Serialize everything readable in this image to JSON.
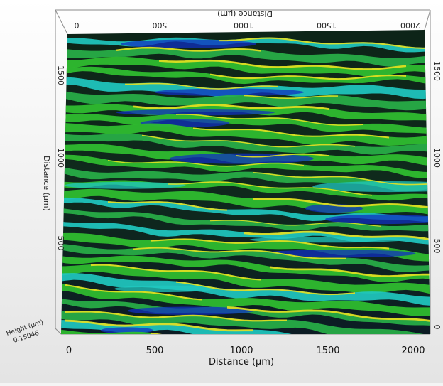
{
  "figure": {
    "top_axis": {
      "label": "Distance (μm)",
      "ticks": [
        "0",
        "500",
        "1000",
        "1500",
        "2000"
      ]
    },
    "bottom_axis": {
      "label": "Distance (μm)",
      "ticks": [
        "0",
        "500",
        "1000",
        "1500",
        "2000"
      ]
    },
    "left_axis": {
      "label": "Distance (μm)",
      "ticks": [
        "1500",
        "1000",
        "500"
      ]
    },
    "right_axis": {
      "ticks": [
        "1500",
        "1000",
        "500",
        "0"
      ]
    },
    "height_readout": {
      "label": "Height (μm)",
      "value": "0.15046"
    },
    "colors": {
      "dark_valley": "#0a1410",
      "blue": "#1030c0",
      "cyan": "#20c8c0",
      "green": "#30c030",
      "yellow": "#e8e020"
    }
  }
}
